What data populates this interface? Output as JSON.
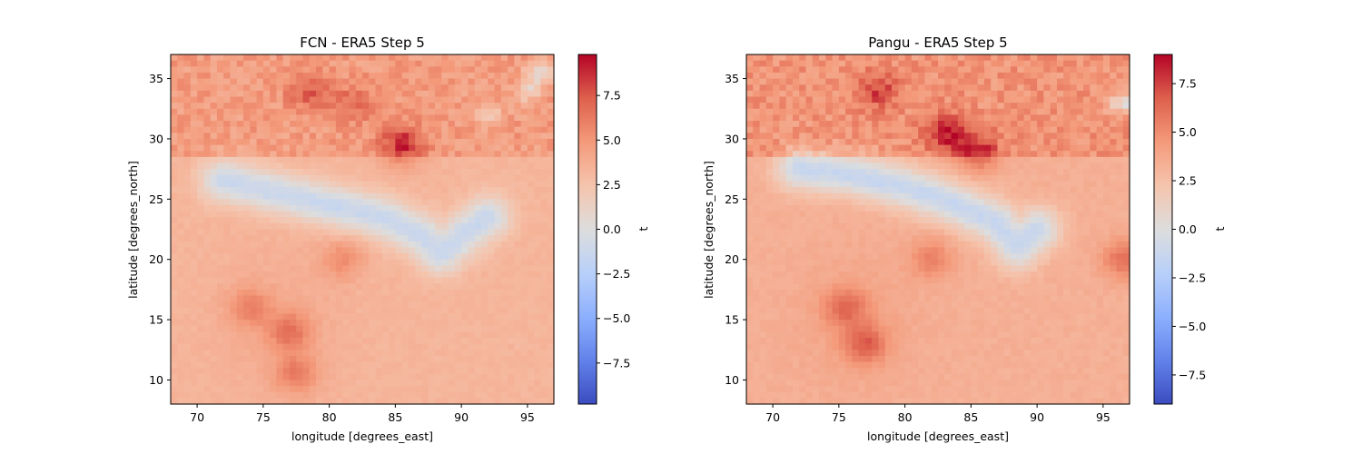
{
  "chart_data": [
    {
      "type": "heatmap",
      "title": "FCN - ERA5 Step 5",
      "xlabel": "longitude [degrees_east]",
      "ylabel": "latitude [degrees_north]",
      "xlim": [
        68,
        97
      ],
      "ylim": [
        8,
        37
      ],
      "xticks": [
        "70",
        "75",
        "80",
        "85",
        "90",
        "95"
      ],
      "yticks": [
        "10",
        "15",
        "20",
        "25",
        "30",
        "35"
      ],
      "colorbar": {
        "label": "t",
        "colormap": "coolwarm",
        "range": [
          -9.8,
          9.8
        ],
        "ticks": [
          "−7.5",
          "−5.0",
          "−2.5",
          "0.0",
          "2.5",
          "5.0",
          "7.5"
        ]
      },
      "features": {
        "cold_band": [
          [
            72,
            26.5
          ],
          [
            76,
            25.5
          ],
          [
            80,
            24.5
          ],
          [
            84,
            23.5
          ],
          [
            87,
            22
          ],
          [
            88.5,
            20.5
          ],
          [
            90,
            22
          ],
          [
            92,
            23.5
          ]
        ],
        "hot_spots": [
          [
            85.5,
            29.5,
            9.5
          ],
          [
            77,
            14,
            6.5
          ],
          [
            74,
            16,
            5
          ],
          [
            77.5,
            10.5,
            6
          ],
          [
            81,
            20,
            4.5
          ],
          [
            78.5,
            34,
            6
          ],
          [
            82,
            33,
            5
          ]
        ],
        "cold_spots": [
          [
            92,
            32,
            -1.5
          ],
          [
            95,
            34,
            -1.5
          ],
          [
            96,
            35.5,
            -2
          ]
        ]
      }
    },
    {
      "type": "heatmap",
      "title": "Pangu - ERA5 Step 5",
      "xlabel": "longitude [degrees_east]",
      "ylabel": "latitude [degrees_north]",
      "xlim": [
        68,
        97
      ],
      "ylim": [
        8,
        37
      ],
      "xticks": [
        "70",
        "75",
        "80",
        "85",
        "90",
        "95"
      ],
      "yticks": [
        "10",
        "15",
        "20",
        "25",
        "30",
        "35"
      ],
      "colorbar": {
        "label": "t",
        "colormap": "coolwarm",
        "range": [
          -9,
          9
        ],
        "ticks": [
          "−7.5",
          "−5.0",
          "−2.5",
          "0.0",
          "2.5",
          "5.0",
          "7.5"
        ]
      },
      "features": {
        "cold_band": [
          [
            72,
            27.5
          ],
          [
            76,
            27
          ],
          [
            80,
            26
          ],
          [
            84,
            24.5
          ],
          [
            87,
            23
          ],
          [
            88.5,
            21
          ],
          [
            90,
            22.5
          ]
        ],
        "hot_spots": [
          [
            83,
            30.5,
            8
          ],
          [
            85.5,
            29,
            8
          ],
          [
            77,
            13,
            7
          ],
          [
            75.5,
            16,
            6
          ],
          [
            82,
            20,
            5
          ],
          [
            78,
            34,
            6
          ],
          [
            96.5,
            20,
            6
          ]
        ],
        "cold_spots": [
          [
            96.5,
            33,
            -2
          ]
        ]
      }
    }
  ]
}
